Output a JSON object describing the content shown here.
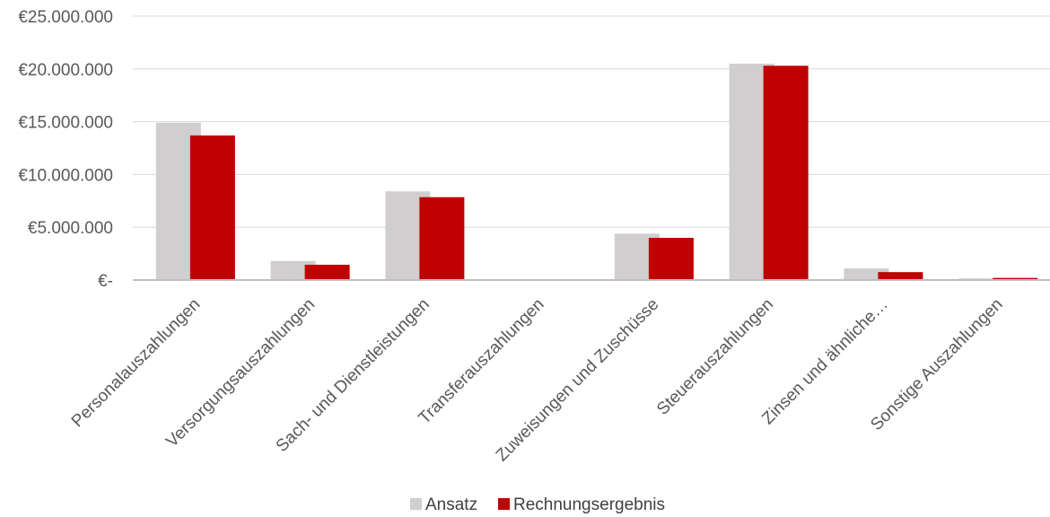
{
  "chart_data": {
    "type": "bar",
    "title": "",
    "xlabel": "",
    "ylabel": "",
    "categories": [
      "Personalauszahlungen",
      "Versorgungsauszahlungen",
      "Sach- und Dienstleistungen",
      "Transferauszahlungen",
      "Zuweisungen  und Zuschüsse",
      "Steuerauszahlungen",
      "Zinsen  und ähnliche…",
      "Sonstige  Auszahlungen"
    ],
    "series": [
      {
        "name": "Ansatz",
        "color": "#d0cece",
        "values": [
          14900000,
          1800000,
          8400000,
          0,
          4400000,
          20500000,
          1100000,
          150000
        ]
      },
      {
        "name": "Rechnungsergebnis",
        "color": "#c00000",
        "values": [
          13700000,
          1450000,
          7850000,
          0,
          4000000,
          20300000,
          750000,
          200000
        ]
      }
    ],
    "ylim": [
      0,
      25000000
    ],
    "yticks": [
      {
        "value": 0,
        "label": "€-"
      },
      {
        "value": 5000000,
        "label": "€5.000.000"
      },
      {
        "value": 10000000,
        "label": "€10.000.000"
      },
      {
        "value": 15000000,
        "label": "€15.000.000"
      },
      {
        "value": 20000000,
        "label": "€20.000.000"
      },
      {
        "value": 25000000,
        "label": "€25.000.000"
      }
    ],
    "grid": true,
    "legend_position": "bottom-center"
  }
}
